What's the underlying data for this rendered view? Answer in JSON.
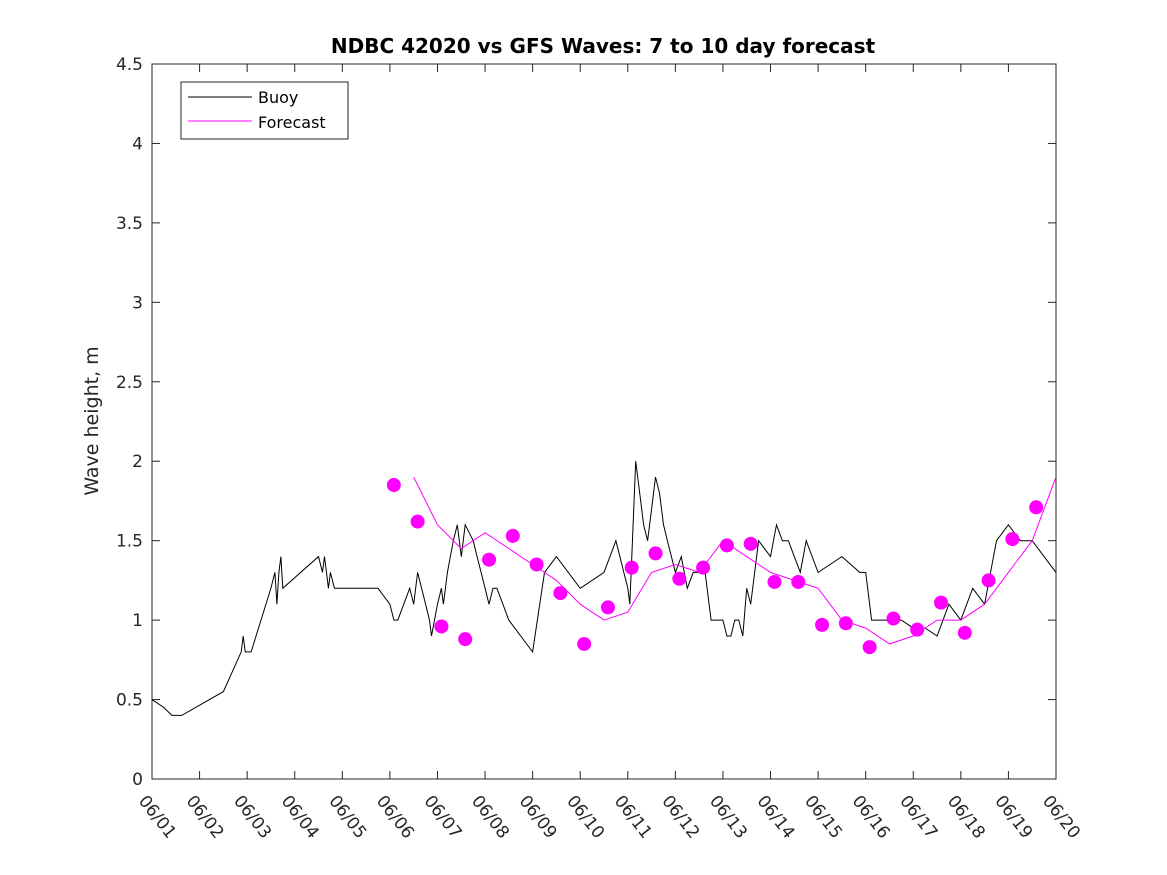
{
  "chart_data": {
    "type": "line",
    "title": "NDBC 42020 vs GFS Waves: 7 to 10 day forecast",
    "xlabel": "",
    "ylabel": "Wave height, m",
    "ylim": [
      0,
      4.5
    ],
    "xlim": [
      "06/01",
      "06/20"
    ],
    "x_tick_labels": [
      "06/01",
      "06/02",
      "06/03",
      "06/04",
      "06/05",
      "06/06",
      "06/07",
      "06/08",
      "06/09",
      "06/10",
      "06/11",
      "06/12",
      "06/13",
      "06/14",
      "06/15",
      "06/16",
      "06/17",
      "06/18",
      "06/19",
      "06/20"
    ],
    "y_tick_labels": [
      "0",
      "0.5",
      "1",
      "1.5",
      "2",
      "2.5",
      "3",
      "3.5",
      "4",
      "4.5"
    ],
    "grid": false,
    "legend_position": "top-left",
    "colors": {
      "buoy": "#000000",
      "forecast": "#ff00ff"
    },
    "series": [
      {
        "name": "Buoy",
        "x": [
          "06/01 00:00",
          "06/01 06:00",
          "06/01 10:00",
          "06/01 12:00",
          "06/01 15:00",
          "06/02 12:00",
          "06/02 21:00",
          "06/02 22:00",
          "06/02 23:00",
          "06/03 02:00",
          "06/03 12:00",
          "06/03 14:00",
          "06/03 15:00",
          "06/03 16:00",
          "06/03 17:00",
          "06/03 18:00",
          "06/04 12:00",
          "06/04 14:00",
          "06/04 15:00",
          "06/04 16:00",
          "06/04 17:00",
          "06/04 18:00",
          "06/04 20:00",
          "06/04 21:00",
          "06/05 00:00",
          "06/05 12:00",
          "06/05 18:00",
          "06/06 00:00",
          "06/06 02:00",
          "06/06 04:00",
          "06/06 10:00",
          "06/06 12:00",
          "06/06 14:00",
          "06/06 16:00",
          "06/06 18:00",
          "06/06 20:00",
          "06/06 21:00",
          "06/07 00:00",
          "06/07 02:00",
          "06/07 03:00",
          "06/07 05:00",
          "06/07 08:00",
          "06/07 10:00",
          "06/07 12:00",
          "06/07 14:00",
          "06/07 18:00",
          "06/07 20:00",
          "06/07 22:00",
          "06/08 00:00",
          "06/08 02:00",
          "06/08 04:00",
          "06/08 06:00",
          "06/08 09:00",
          "06/08 12:00",
          "06/08 18:00",
          "06/09 00:00",
          "06/09 06:00",
          "06/09 12:00",
          "06/10 00:00",
          "06/10 12:00",
          "06/10 18:00",
          "06/11 00:00",
          "06/11 01:00",
          "06/11 02:00",
          "06/11 04:00",
          "06/11 06:00",
          "06/11 08:00",
          "06/11 10:00",
          "06/11 12:00",
          "06/11 14:00",
          "06/11 16:00",
          "06/11 18:00",
          "06/11 20:00",
          "06/12 00:00",
          "06/12 03:00",
          "06/12 06:00",
          "06/12 09:00",
          "06/12 12:00",
          "06/12 15:00",
          "06/12 18:00",
          "06/13 00:00",
          "06/13 02:00",
          "06/13 04:00",
          "06/13 06:00",
          "06/13 08:00",
          "06/13 10:00",
          "06/13 12:00",
          "06/13 14:00",
          "06/13 18:00",
          "06/14 00:00",
          "06/14 03:00",
          "06/14 06:00",
          "06/14 09:00",
          "06/14 12:00",
          "06/14 15:00",
          "06/14 18:00",
          "06/15 00:00",
          "06/15 12:00",
          "06/15 21:00",
          "06/16 00:00",
          "06/16 03:00",
          "06/16 06:00",
          "06/16 12:00",
          "06/16 18:00",
          "06/17 00:00",
          "06/17 06:00",
          "06/17 12:00",
          "06/17 18:00",
          "06/18 00:00",
          "06/18 06:00",
          "06/18 12:00",
          "06/18 18:00",
          "06/19 00:00",
          "06/19 06:00",
          "06/19 12:00",
          "06/19 18:00",
          "06/20 00:00"
        ],
        "y": [
          0.5,
          0.45,
          0.4,
          0.4,
          0.4,
          0.55,
          0.8,
          0.9,
          0.8,
          0.8,
          1.2,
          1.3,
          1.1,
          1.3,
          1.4,
          1.2,
          1.4,
          1.3,
          1.4,
          1.3,
          1.2,
          1.3,
          1.2,
          1.2,
          1.2,
          1.2,
          1.2,
          1.1,
          1.0,
          1.0,
          1.2,
          1.1,
          1.3,
          1.2,
          1.1,
          1.0,
          0.9,
          1.1,
          1.2,
          1.1,
          1.3,
          1.5,
          1.6,
          1.4,
          1.6,
          1.5,
          1.4,
          1.3,
          1.2,
          1.1,
          1.2,
          1.2,
          1.1,
          1.0,
          0.9,
          0.8,
          1.3,
          1.4,
          1.2,
          1.3,
          1.5,
          1.2,
          1.1,
          1.4,
          2.0,
          1.8,
          1.6,
          1.5,
          1.7,
          1.9,
          1.8,
          1.6,
          1.5,
          1.3,
          1.4,
          1.2,
          1.3,
          1.3,
          1.3,
          1.0,
          1.0,
          0.9,
          0.9,
          1.0,
          1.0,
          0.9,
          1.2,
          1.1,
          1.5,
          1.4,
          1.6,
          1.5,
          1.5,
          1.4,
          1.3,
          1.5,
          1.3,
          1.4,
          1.3,
          1.3,
          1.0,
          1.0,
          1.0,
          1.0,
          0.95,
          0.95,
          0.9,
          1.1,
          1.0,
          1.2,
          1.1,
          1.5,
          1.6,
          1.5,
          1.5,
          1.4,
          1.3
        ]
      },
      {
        "name": "Forecast",
        "x": [
          "06/06 12:00",
          "06/07 00:00",
          "06/07 12:00",
          "06/08 00:00",
          "06/08 12:00",
          "06/09 00:00",
          "06/09 12:00",
          "06/10 00:00",
          "06/10 12:00",
          "06/11 00:00",
          "06/11 12:00",
          "06/12 00:00",
          "06/12 12:00",
          "06/13 00:00",
          "06/13 12:00",
          "06/14 00:00",
          "06/14 12:00",
          "06/15 00:00",
          "06/15 12:00",
          "06/16 00:00",
          "06/16 12:00",
          "06/17 00:00",
          "06/17 12:00",
          "06/18 00:00",
          "06/18 12:00",
          "06/19 00:00",
          "06/19 12:00",
          "06/20 00:00"
        ],
        "y": [
          1.9,
          1.6,
          1.45,
          1.55,
          1.45,
          1.35,
          1.25,
          1.1,
          1.0,
          1.05,
          1.3,
          1.35,
          1.3,
          1.5,
          1.4,
          1.3,
          1.25,
          1.2,
          1.0,
          0.95,
          0.85,
          0.9,
          1.0,
          1.0,
          1.1,
          1.3,
          1.5,
          1.9
        ]
      }
    ],
    "forecast_points": {
      "x": [
        "06/06 02:00",
        "06/06 14:00",
        "06/07 02:00",
        "06/07 14:00",
        "06/08 02:00",
        "06/08 14:00",
        "06/09 02:00",
        "06/09 14:00",
        "06/10 02:00",
        "06/10 14:00",
        "06/11 02:00",
        "06/11 14:00",
        "06/12 02:00",
        "06/12 14:00",
        "06/13 02:00",
        "06/13 14:00",
        "06/14 02:00",
        "06/14 14:00",
        "06/15 02:00",
        "06/15 14:00",
        "06/16 02:00",
        "06/16 14:00",
        "06/17 02:00",
        "06/17 14:00",
        "06/18 02:00",
        "06/18 14:00",
        "06/19 02:00",
        "06/19 14:00"
      ],
      "y": [
        1.85,
        1.62,
        0.96,
        0.88,
        1.38,
        1.53,
        1.35,
        1.17,
        0.85,
        1.08,
        1.33,
        1.42,
        1.26,
        1.33,
        1.47,
        1.48,
        1.24,
        1.24,
        0.97,
        0.98,
        0.83,
        1.01,
        0.94,
        1.11,
        0.92,
        1.25,
        1.51,
        1.71
      ]
    }
  }
}
